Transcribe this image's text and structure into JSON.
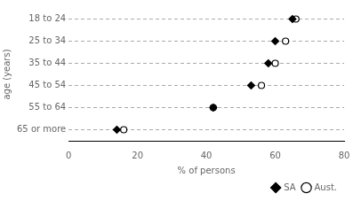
{
  "chart_data": {
    "type": "dot",
    "categories": [
      "18 to 24",
      "25 to 34",
      "35 to 44",
      "45 to 54",
      "55 to 64",
      "65 or more"
    ],
    "series": [
      {
        "name": "SA",
        "color": "#000000",
        "marker": "diamond",
        "values": [
          65,
          60,
          58,
          53,
          42,
          14
        ]
      },
      {
        "name": "Aust.",
        "color": "#000000",
        "marker": "open_circle",
        "values": [
          66,
          63,
          60,
          56,
          42,
          16
        ]
      }
    ],
    "xlabel": "% of persons",
    "ylabel": "age (years)",
    "xlim": [
      0,
      80
    ],
    "xticks": [
      0,
      20,
      40,
      60,
      80
    ],
    "grid": "y",
    "legend": "lower right"
  }
}
